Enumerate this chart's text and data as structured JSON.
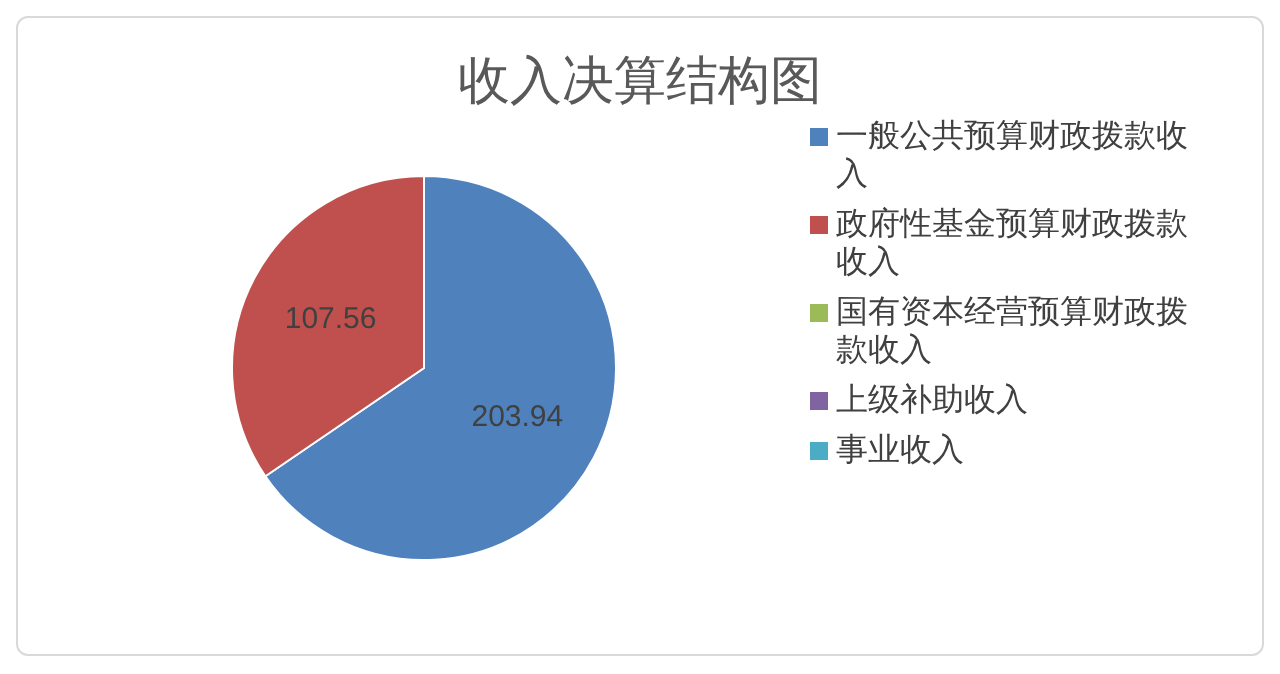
{
  "chart_data": {
    "type": "pie",
    "title": "收入决算结构图",
    "categories": [
      "一般公共预算财政拨款收入",
      "政府性基金预算财政拨款收入",
      "国有资本经营预算财政拨款收入",
      "上级补助收入",
      "事业收入"
    ],
    "values": [
      203.94,
      107.56,
      0,
      0,
      0
    ],
    "colors": [
      "#4f81bd",
      "#c0504d",
      "#9bbb59",
      "#8064a2",
      "#4bacc6"
    ],
    "value_labels": [
      "203.94",
      "107.56",
      null,
      null,
      null
    ],
    "legend": "right"
  }
}
